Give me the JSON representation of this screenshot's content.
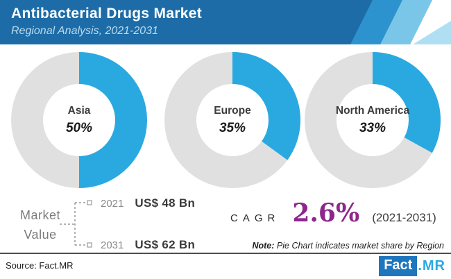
{
  "header": {
    "title": "Antibacterial Drugs Market",
    "subtitle": "Regional Analysis, 2021-2031",
    "bg_color": "#1d6ca7",
    "stripe_medium": "#2d93ce",
    "stripe_light": "#79c6e9",
    "stripe_pale": "#b0dff4"
  },
  "chart_data": {
    "type": "pie",
    "variant": "donut",
    "title": "Antibacterial Drugs Market — Regional Analysis, 2021-2031",
    "series": [
      {
        "name": "Asia",
        "value": 50,
        "label": "50%"
      },
      {
        "name": "Europe",
        "value": 35,
        "label": "35%"
      },
      {
        "name": "North America",
        "value": 33,
        "label": "33%"
      }
    ],
    "fill_color": "#29a9e0",
    "track_color": "#e0e0e0",
    "legend_position": "center-of-donut",
    "note": "Each donut filled clockwise from 12 o'clock by regional market share"
  },
  "market_value": {
    "label_line1": "Market",
    "label_line2": "Value",
    "rows": [
      {
        "year": "2021",
        "value": "US$ 48 Bn"
      },
      {
        "year": "2031",
        "value": "US$ 62 Bn"
      }
    ]
  },
  "cagr": {
    "label": "CAGR",
    "value": "2.6%",
    "period": "(2021-2031)",
    "color": "#8e278c"
  },
  "note": {
    "prefix": "Note:",
    "text": " Pie Chart indicates market share by Region"
  },
  "footer": {
    "source": "Source: Fact.MR",
    "logo_fact": "Fact",
    "logo_mr": ".MR"
  }
}
